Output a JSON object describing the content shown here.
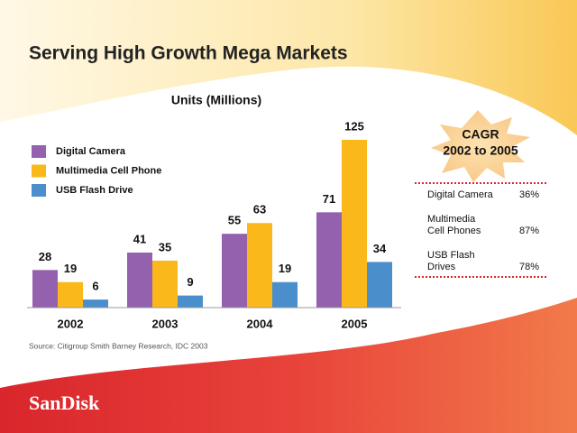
{
  "chart_data": {
    "type": "bar",
    "title": "Serving High Growth Mega Markets",
    "subtitle": "Units (Millions)",
    "categories": [
      "2002",
      "2003",
      "2004",
      "2005"
    ],
    "series": [
      {
        "name": "Digital Camera",
        "color": "#9361ae",
        "values": [
          28,
          41,
          55,
          71
        ]
      },
      {
        "name": "Multimedia Cell Phone",
        "color": "#fbb81a",
        "values": [
          19,
          35,
          63,
          125
        ]
      },
      {
        "name": "USB Flash Drive",
        "color": "#4a8fcc",
        "values": [
          6,
          9,
          19,
          34
        ]
      }
    ],
    "source": "Source: Citigroup Smith Barney Research, IDC 2003"
  },
  "cagr_table": {
    "heading": [
      "CAGR",
      "2002 to 2005"
    ],
    "rows": [
      {
        "label": [
          "Digital Camera"
        ],
        "value": "36%"
      },
      {
        "label": [
          "Multimedia",
          "Cell Phones"
        ],
        "value": "87%"
      },
      {
        "label": [
          "USB Flash",
          "Drives"
        ],
        "value": "78%"
      }
    ]
  },
  "logo": "SanDisk"
}
